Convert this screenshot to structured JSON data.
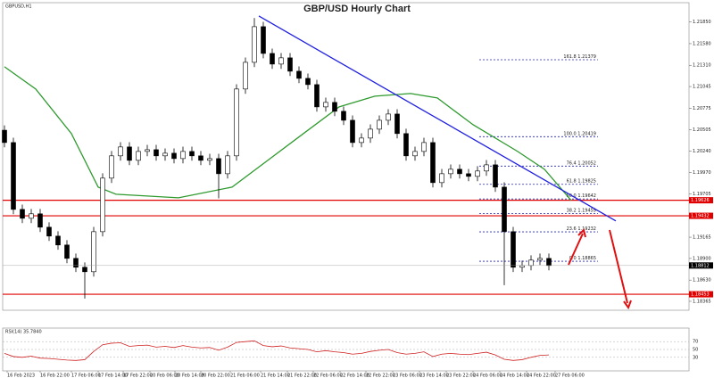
{
  "chart_data": {
    "type": "candlestick",
    "title": "GBP/USD Hourly Chart",
    "symbol": "GBPUSD,H1",
    "xlim": [
      0,
      76.5
    ],
    "ylim": [
      1.18287,
      1.22069
    ],
    "up_color": "#ffffff",
    "down_color": "#000000",
    "open": [
      1.205,
      1.20346,
      1.19512,
      1.19401,
      1.19457,
      1.1929,
      1.19179,
      1.19068,
      1.18901,
      1.1879,
      1.18734,
      1.19234,
      1.19902,
      1.2018,
      1.20291,
      1.20124,
      1.20235,
      1.20257,
      1.2018,
      1.20213,
      1.20146,
      1.20235,
      1.2018,
      1.20124,
      1.20146,
      1.19957,
      1.2018,
      1.21014,
      1.21347,
      1.21792,
      1.21458,
      1.21325,
      1.21403,
      1.21236,
      1.21147,
      1.21069,
      1.20791,
      1.20847,
      1.20736,
      1.20624,
      1.20346,
      1.20402,
      1.20513,
      1.20624,
      1.20702,
      1.20458,
      1.2018,
      1.20235,
      1.20346,
      1.19846,
      1.19957,
      1.20013,
      1.19957,
      1.19924,
      1.19991,
      1.20068,
      1.1979,
      1.19234,
      1.1879,
      1.18812,
      1.18879,
      1.18901
    ],
    "high": [
      1.2056,
      1.20406,
      1.19572,
      1.19517,
      1.19517,
      1.1935,
      1.19239,
      1.19128,
      1.18961,
      1.1885,
      1.19294,
      1.19962,
      1.2024,
      1.20351,
      1.20351,
      1.20295,
      1.20317,
      1.20317,
      1.20273,
      1.20273,
      1.20295,
      1.20295,
      1.2024,
      1.20206,
      1.20206,
      1.2024,
      1.21074,
      1.21407,
      1.219,
      1.21852,
      1.21518,
      1.21463,
      1.21463,
      1.21296,
      1.21207,
      1.21129,
      1.20907,
      1.20907,
      1.20796,
      1.20684,
      1.20462,
      1.20573,
      1.20684,
      1.20762,
      1.20762,
      1.20518,
      1.20295,
      1.20406,
      1.20406,
      1.20017,
      1.20073,
      1.20073,
      1.20017,
      1.20051,
      1.20128,
      1.20128,
      1.1985,
      1.19294,
      1.18872,
      1.18939,
      1.18961,
      1.18961
    ],
    "low": [
      1.20286,
      1.19452,
      1.19341,
      1.19341,
      1.1923,
      1.19119,
      1.19008,
      1.18841,
      1.1873,
      1.184,
      1.18674,
      1.19174,
      1.19842,
      1.2012,
      1.20064,
      1.20064,
      1.20175,
      1.2012,
      1.2012,
      1.20086,
      1.20086,
      1.2012,
      1.20064,
      1.20064,
      1.1965,
      1.19897,
      1.2012,
      1.20954,
      1.21287,
      1.21398,
      1.21265,
      1.21265,
      1.21176,
      1.21087,
      1.21009,
      1.20731,
      1.20731,
      1.20676,
      1.20564,
      1.20286,
      1.20286,
      1.20342,
      1.20453,
      1.20564,
      1.20398,
      1.2012,
      1.2012,
      1.20175,
      1.19786,
      1.19786,
      1.19897,
      1.19897,
      1.19864,
      1.19864,
      1.19931,
      1.1973,
      1.18567,
      1.1873,
      1.1873,
      1.18752,
      1.18819,
      1.18752
    ],
    "close": [
      1.20346,
      1.19512,
      1.19401,
      1.19457,
      1.1929,
      1.19179,
      1.19068,
      1.18901,
      1.1879,
      1.18734,
      1.19234,
      1.19902,
      1.2018,
      1.20291,
      1.20124,
      1.20235,
      1.20257,
      1.2018,
      1.20213,
      1.20146,
      1.20235,
      1.2018,
      1.20124,
      1.20146,
      1.19957,
      1.2018,
      1.21014,
      1.21347,
      1.21792,
      1.21458,
      1.21325,
      1.21403,
      1.21236,
      1.21147,
      1.21069,
      1.20791,
      1.20847,
      1.20736,
      1.20624,
      1.20346,
      1.20402,
      1.20513,
      1.20624,
      1.20702,
      1.20458,
      1.2018,
      1.20235,
      1.20346,
      1.19846,
      1.19957,
      1.20013,
      1.19957,
      1.19924,
      1.19991,
      1.20068,
      1.1979,
      1.19234,
      1.1879,
      1.18812,
      1.18879,
      1.18901,
      1.18812
    ],
    "yticks": [
      {
        "value": 1.2185,
        "label": "1.21850"
      },
      {
        "value": 1.2158,
        "label": "1.21580"
      },
      {
        "value": 1.2131,
        "label": "1.21310"
      },
      {
        "value": 1.21045,
        "label": "1.21045"
      },
      {
        "value": 1.20775,
        "label": "1.20775"
      },
      {
        "value": 1.20505,
        "label": "1.20505"
      },
      {
        "value": 1.2024,
        "label": "1.20240"
      },
      {
        "value": 1.1997,
        "label": "1.19970"
      },
      {
        "value": 1.19705,
        "label": "1.19705"
      },
      {
        "value": 1.19435,
        "label": "1.19435"
      },
      {
        "value": 1.19165,
        "label": "1.19165"
      },
      {
        "value": 1.189,
        "label": "1.18900"
      },
      {
        "value": 1.1863,
        "label": "1.18630"
      },
      {
        "value": 1.18365,
        "label": "1.18365"
      }
    ],
    "xticks": [
      {
        "value": 0.3,
        "label": "16 Feb 2023"
      },
      {
        "value": 4,
        "label": "16 Feb 22:00"
      },
      {
        "value": 7.5,
        "label": "17 Feb 06:00"
      },
      {
        "value": 10.5,
        "label": "17 Feb 14:00"
      },
      {
        "value": 13.3,
        "label": "17 Feb 22:00"
      },
      {
        "value": 16.3,
        "label": "20 Feb 06:00"
      },
      {
        "value": 19.1,
        "label": "20 Feb 14:00"
      },
      {
        "value": 22,
        "label": "20 Feb 22:00"
      },
      {
        "value": 25.3,
        "label": "21 Feb 06:00"
      },
      {
        "value": 28.7,
        "label": "21 Feb 14:00"
      },
      {
        "value": 31.7,
        "label": "21 Feb 22:00"
      },
      {
        "value": 34.6,
        "label": "22 Feb 06:00"
      },
      {
        "value": 37.6,
        "label": "22 Feb 14:00"
      },
      {
        "value": 40.5,
        "label": "22 Feb 22:00"
      },
      {
        "value": 43.5,
        "label": "23 Feb 06:00"
      },
      {
        "value": 46.5,
        "label": "23 Feb 14:00"
      },
      {
        "value": 49.5,
        "label": "23 Feb 22:00"
      },
      {
        "value": 52.5,
        "label": "24 Feb 06:00"
      },
      {
        "value": 55.5,
        "label": "24 Feb 14:00"
      },
      {
        "value": 58.5,
        "label": "24 Feb 22:00"
      },
      {
        "value": 61.7,
        "label": "27 Feb 06:00"
      }
    ],
    "ma": {
      "color": "#2e9a2e",
      "x": [
        0,
        3.5,
        7.5,
        10.5,
        12.5,
        19.5,
        25.5,
        29.5,
        33.5,
        37.5,
        41.5,
        45.5,
        48.5,
        52.5,
        57.5,
        60.5,
        63.5
      ],
      "values": [
        1.21292,
        1.21014,
        1.20458,
        1.1979,
        1.19701,
        1.19657,
        1.1979,
        1.20124,
        1.20458,
        1.20791,
        1.20925,
        1.20958,
        1.20902,
        1.20569,
        1.20235,
        1.20013,
        1.19624
      ]
    },
    "trendline": {
      "color": "#2020e0",
      "x": [
        28.5,
        68.5
      ],
      "values": [
        1.21925,
        1.19368
      ]
    },
    "fib_color": "#2020d0",
    "fib_levels": [
      {
        "value": 1.21379,
        "label": "161.8 1.21379"
      },
      {
        "value": 1.20419,
        "label": "100.0 1.20419"
      },
      {
        "value": 1.20052,
        "label": "76.4 1.20052"
      },
      {
        "value": 1.19825,
        "label": "61.8 1.19825"
      },
      {
        "value": 1.19642,
        "label": "50.0 1.19642"
      },
      {
        "value": 1.19459,
        "label": "38.2 1.19459"
      },
      {
        "value": 1.19232,
        "label": "23.6 1.19232"
      },
      {
        "value": 1.18865,
        "label": "0.0 1.18865"
      }
    ],
    "level_color": "#e00000",
    "levels": [
      {
        "value": 1.19626,
        "label": "1.19626"
      },
      {
        "value": 1.19432,
        "label": "1.19432"
      },
      {
        "value": 1.18453,
        "label": "1.18453"
      }
    ],
    "last_price": {
      "value": 1.18812,
      "label": "1.18812"
    },
    "rsi": {
      "title": "RSI(14) 35.7840",
      "color": "#d02020",
      "ylim": [
        0,
        100
      ],
      "yticks": [
        70,
        50,
        30
      ],
      "values": [
        40,
        32,
        30,
        33,
        28,
        27,
        25,
        23,
        22,
        24,
        45,
        62,
        66,
        67,
        58,
        60,
        61,
        56,
        58,
        55,
        60,
        56,
        54,
        55,
        48,
        56,
        68,
        70,
        72,
        60,
        57,
        59,
        54,
        52,
        50,
        44,
        47,
        44,
        42,
        38,
        40,
        45,
        48,
        50,
        42,
        38,
        40,
        44,
        32,
        38,
        40,
        38,
        37,
        40,
        43,
        36,
        25,
        22,
        24,
        30,
        35,
        36
      ]
    }
  }
}
